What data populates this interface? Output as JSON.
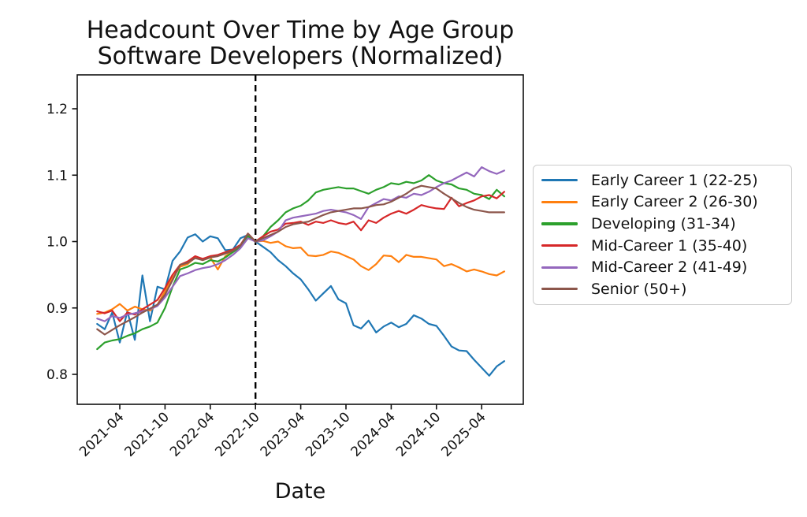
{
  "figure": {
    "title_line1": "Headcount Over Time by Age Group",
    "title_line2": "Software Developers (Normalized)",
    "xlabel": "Date"
  },
  "chart_data": {
    "type": "line",
    "title": "Headcount Over Time by Age Group — Software Developers (Normalized)",
    "xlabel": "Date",
    "ylabel": "",
    "grid": false,
    "legend_position": "right",
    "ylim": [
      0.755,
      1.251
    ],
    "yticks": [
      0.8,
      0.9,
      1.0,
      1.1,
      1.2
    ],
    "xticks": [
      "2021-04",
      "2021-10",
      "2022-04",
      "2022-10",
      "2023-04",
      "2023-10",
      "2024-04",
      "2024-10",
      "2025-04"
    ],
    "vline": {
      "x": "2022-10",
      "style": "dashed",
      "color": "#000000"
    },
    "x": [
      "2021-01",
      "2021-02",
      "2021-03",
      "2021-04",
      "2021-05",
      "2021-06",
      "2021-07",
      "2021-08",
      "2021-09",
      "2021-10",
      "2021-11",
      "2021-12",
      "2022-01",
      "2022-02",
      "2022-03",
      "2022-04",
      "2022-05",
      "2022-06",
      "2022-07",
      "2022-08",
      "2022-09",
      "2022-10",
      "2022-11",
      "2022-12",
      "2023-01",
      "2023-02",
      "2023-03",
      "2023-04",
      "2023-05",
      "2023-06",
      "2023-07",
      "2023-08",
      "2023-09",
      "2023-10",
      "2023-11",
      "2023-12",
      "2024-01",
      "2024-02",
      "2024-03",
      "2024-04",
      "2024-05",
      "2024-06",
      "2024-07",
      "2024-08",
      "2024-09",
      "2024-10",
      "2024-11",
      "2024-12",
      "2025-01",
      "2025-02",
      "2025-03",
      "2025-04",
      "2025-05",
      "2025-06",
      "2025-07"
    ],
    "series": [
      {
        "name": "Early Career 1 (22-25)",
        "color": "#1f77b4",
        "values": [
          0.876,
          0.868,
          0.893,
          0.848,
          0.895,
          0.852,
          0.949,
          0.88,
          0.932,
          0.928,
          0.971,
          0.985,
          1.006,
          1.011,
          1.0,
          1.008,
          1.005,
          0.987,
          0.988,
          1.005,
          1.01,
          1.0,
          0.992,
          0.984,
          0.972,
          0.963,
          0.952,
          0.943,
          0.928,
          0.911,
          0.922,
          0.933,
          0.913,
          0.907,
          0.874,
          0.869,
          0.881,
          0.863,
          0.872,
          0.878,
          0.871,
          0.876,
          0.889,
          0.884,
          0.876,
          0.873,
          0.858,
          0.842,
          0.836,
          0.835,
          0.822,
          0.81,
          0.798,
          0.812,
          0.82
        ]
      },
      {
        "name": "Early Career 2 (26-30)",
        "color": "#ff7f0e",
        "values": [
          0.891,
          0.893,
          0.898,
          0.906,
          0.896,
          0.902,
          0.898,
          0.896,
          0.905,
          0.925,
          0.945,
          0.962,
          0.966,
          0.976,
          0.972,
          0.976,
          0.958,
          0.978,
          0.985,
          0.992,
          1.008,
          1.0,
          1.001,
          0.998,
          1.0,
          0.993,
          0.99,
          0.991,
          0.979,
          0.978,
          0.98,
          0.985,
          0.983,
          0.978,
          0.973,
          0.963,
          0.957,
          0.966,
          0.979,
          0.978,
          0.969,
          0.98,
          0.977,
          0.977,
          0.975,
          0.973,
          0.963,
          0.966,
          0.961,
          0.955,
          0.958,
          0.955,
          0.951,
          0.949,
          0.955
        ]
      },
      {
        "name": "Developing (31-34)",
        "color": "#2ca02c",
        "values": [
          0.838,
          0.848,
          0.851,
          0.853,
          0.858,
          0.862,
          0.868,
          0.872,
          0.878,
          0.9,
          0.932,
          0.958,
          0.962,
          0.968,
          0.966,
          0.972,
          0.97,
          0.976,
          0.984,
          0.992,
          1.008,
          1.0,
          1.008,
          1.022,
          1.032,
          1.044,
          1.05,
          1.054,
          1.062,
          1.074,
          1.078,
          1.08,
          1.082,
          1.08,
          1.08,
          1.076,
          1.072,
          1.078,
          1.082,
          1.088,
          1.086,
          1.09,
          1.088,
          1.092,
          1.1,
          1.092,
          1.088,
          1.086,
          1.08,
          1.078,
          1.072,
          1.07,
          1.064,
          1.078,
          1.068
        ]
      },
      {
        "name": "Mid-Career 1 (35-40)",
        "color": "#d62728",
        "values": [
          0.895,
          0.892,
          0.896,
          0.88,
          0.893,
          0.89,
          0.898,
          0.905,
          0.912,
          0.93,
          0.95,
          0.965,
          0.97,
          0.978,
          0.974,
          0.978,
          0.98,
          0.984,
          0.988,
          0.995,
          1.012,
          1.0,
          1.008,
          1.015,
          1.018,
          1.027,
          1.028,
          1.03,
          1.025,
          1.03,
          1.028,
          1.032,
          1.028,
          1.026,
          1.03,
          1.017,
          1.032,
          1.028,
          1.036,
          1.042,
          1.046,
          1.042,
          1.048,
          1.055,
          1.052,
          1.05,
          1.049,
          1.066,
          1.053,
          1.058,
          1.062,
          1.068,
          1.07,
          1.065,
          1.075
        ]
      },
      {
        "name": "Mid-Career 2 (41-49)",
        "color": "#9467bd",
        "values": [
          0.884,
          0.88,
          0.888,
          0.885,
          0.89,
          0.892,
          0.895,
          0.898,
          0.903,
          0.916,
          0.932,
          0.948,
          0.952,
          0.957,
          0.96,
          0.962,
          0.966,
          0.972,
          0.98,
          0.99,
          1.005,
          1.0,
          1.002,
          1.008,
          1.015,
          1.032,
          1.036,
          1.038,
          1.04,
          1.042,
          1.046,
          1.048,
          1.046,
          1.044,
          1.04,
          1.034,
          1.052,
          1.058,
          1.064,
          1.062,
          1.068,
          1.066,
          1.072,
          1.07,
          1.075,
          1.082,
          1.088,
          1.092,
          1.098,
          1.104,
          1.098,
          1.112,
          1.106,
          1.102,
          1.107
        ]
      },
      {
        "name": "Senior (50+)",
        "color": "#8c564b",
        "values": [
          0.868,
          0.86,
          0.867,
          0.874,
          0.88,
          0.886,
          0.893,
          0.899,
          0.905,
          0.92,
          0.942,
          0.965,
          0.968,
          0.975,
          0.972,
          0.976,
          0.978,
          0.982,
          0.986,
          0.994,
          1.012,
          1.0,
          1.005,
          1.01,
          1.015,
          1.022,
          1.026,
          1.028,
          1.03,
          1.035,
          1.04,
          1.044,
          1.046,
          1.048,
          1.05,
          1.05,
          1.052,
          1.055,
          1.056,
          1.06,
          1.066,
          1.072,
          1.08,
          1.084,
          1.082,
          1.08,
          1.072,
          1.065,
          1.058,
          1.052,
          1.048,
          1.046,
          1.044,
          1.044,
          1.044
        ]
      }
    ]
  }
}
